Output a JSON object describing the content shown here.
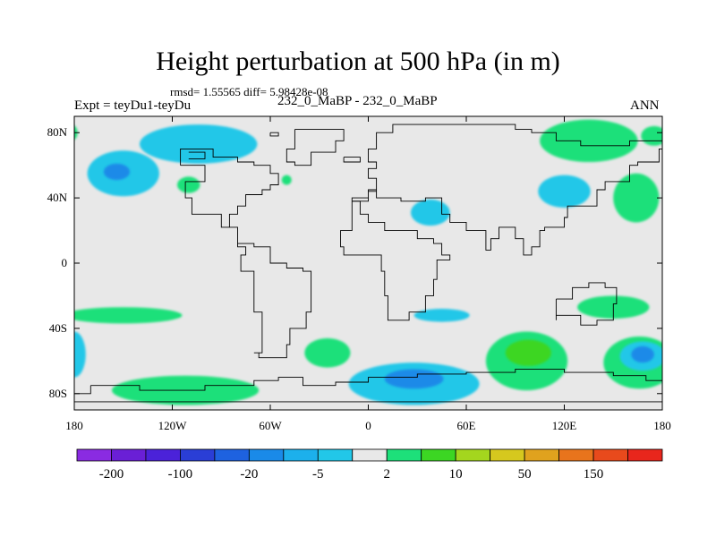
{
  "header": {
    "title": "Height perturbation at 500 hPa (in m)",
    "stats": "rmsd= 1.55565 diff= 5.98428e-08",
    "expt": "Expt = teyDu1-teyDu",
    "center": "232_0_MaBP - 232_0_MaBP",
    "season": "ANN"
  },
  "chart_data": {
    "type": "heatmap",
    "title": "Height perturbation at 500 hPa (in m)",
    "xlim": [
      -180,
      180
    ],
    "ylim": [
      -90,
      90
    ],
    "x_ticks": [
      {
        "value": -180,
        "label": "180"
      },
      {
        "value": -120,
        "label": "120W"
      },
      {
        "value": -60,
        "label": "60W"
      },
      {
        "value": 0,
        "label": "0"
      },
      {
        "value": 60,
        "label": "60E"
      },
      {
        "value": 120,
        "label": "120E"
      },
      {
        "value": 180,
        "label": "180"
      }
    ],
    "y_ticks": [
      {
        "value": 80,
        "label": "80N"
      },
      {
        "value": 40,
        "label": "40N"
      },
      {
        "value": 0,
        "label": "0"
      },
      {
        "value": -40,
        "label": "40S"
      },
      {
        "value": -80,
        "label": "80S"
      }
    ],
    "background_color": "#e8e8e8",
    "colorbar": {
      "colors": [
        "#8a2be2",
        "#6a1fd6",
        "#4b22d9",
        "#2a3ed6",
        "#1e62e0",
        "#1a8ae8",
        "#1cb0ec",
        "#22c7e8",
        "#e8e8e8",
        "#1de07a",
        "#3cd623",
        "#a4d61e",
        "#d6c81e",
        "#e0a21e",
        "#e8741c",
        "#e84a1c",
        "#e8261c"
      ],
      "labels": [
        {
          "after_index": 0,
          "text": "-200"
        },
        {
          "after_index": 2,
          "text": "-100"
        },
        {
          "after_index": 4,
          "text": "-20"
        },
        {
          "after_index": 6,
          "text": "-5"
        },
        {
          "after_index": 8,
          "text": "2"
        },
        {
          "after_index": 10,
          "text": "10"
        },
        {
          "after_index": 12,
          "text": "50"
        },
        {
          "after_index": 14,
          "text": "150"
        }
      ]
    },
    "anomalies": [
      {
        "lon": -150,
        "lat": 55,
        "rx": 22,
        "ry": 14,
        "value": -5
      },
      {
        "lon": -154,
        "lat": 56,
        "rx": 8,
        "ry": 5,
        "value": -20
      },
      {
        "lon": -104,
        "lat": 73,
        "rx": 36,
        "ry": 12,
        "value": -5
      },
      {
        "lon": -110,
        "lat": 48,
        "rx": 7,
        "ry": 5,
        "value": 5
      },
      {
        "lon": -182,
        "lat": 80,
        "rx": 4,
        "ry": 5,
        "value": 5
      },
      {
        "lon": -50,
        "lat": 51,
        "rx": 3,
        "ry": 3,
        "value": 5
      },
      {
        "lon": 38,
        "lat": 31,
        "rx": 12,
        "ry": 8,
        "value": -5
      },
      {
        "lon": 120,
        "lat": 44,
        "rx": 16,
        "ry": 10,
        "value": -5
      },
      {
        "lon": 135,
        "lat": 75,
        "rx": 30,
        "ry": 13,
        "value": 5
      },
      {
        "lon": 164,
        "lat": 40,
        "rx": 14,
        "ry": 15,
        "value": 5
      },
      {
        "lon": 175,
        "lat": 78,
        "rx": 8,
        "ry": 6,
        "value": 5
      },
      {
        "lon": -150,
        "lat": -32,
        "rx": 36,
        "ry": 5,
        "value": 5
      },
      {
        "lon": -180,
        "lat": -56,
        "rx": 7,
        "ry": 14,
        "value": -5
      },
      {
        "lon": -112,
        "lat": -78,
        "rx": 45,
        "ry": 9,
        "value": 5
      },
      {
        "lon": -25,
        "lat": -55,
        "rx": 14,
        "ry": 9,
        "value": 5
      },
      {
        "lon": 28,
        "lat": -74,
        "rx": 40,
        "ry": 13,
        "value": -5
      },
      {
        "lon": 28,
        "lat": -71,
        "rx": 18,
        "ry": 6,
        "value": -20
      },
      {
        "lon": 45,
        "lat": -32,
        "rx": 17,
        "ry": 4,
        "value": -5
      },
      {
        "lon": 97,
        "lat": -60,
        "rx": 25,
        "ry": 18,
        "value": 5
      },
      {
        "lon": 98,
        "lat": -55,
        "rx": 14,
        "ry": 8,
        "value": 10
      },
      {
        "lon": 150,
        "lat": -27,
        "rx": 22,
        "ry": 7,
        "value": 5
      },
      {
        "lon": 166,
        "lat": -61,
        "rx": 22,
        "ry": 16,
        "value": 5
      },
      {
        "lon": 168,
        "lat": -57,
        "rx": 14,
        "ry": 9,
        "value": -5
      },
      {
        "lon": 168,
        "lat": -56,
        "rx": 7,
        "ry": 5,
        "value": -20
      }
    ],
    "boundaries": [
      [
        [
          -60,
          80
        ],
        [
          -55,
          80
        ],
        [
          -55,
          78
        ],
        [
          -60,
          78
        ],
        [
          -60,
          80
        ]
      ],
      [
        [
          -110,
          68
        ],
        [
          -100,
          68
        ],
        [
          -100,
          64
        ],
        [
          -110,
          64
        ]
      ],
      [
        [
          -115,
          60
        ],
        [
          -100,
          60
        ],
        [
          -100,
          50
        ],
        [
          -112,
          50
        ],
        [
          -112,
          40
        ],
        [
          -108,
          40
        ],
        [
          -108,
          30
        ],
        [
          -95,
          30
        ],
        [
          -90,
          22
        ],
        [
          -80,
          10
        ],
        [
          -75,
          5
        ],
        [
          -78,
          -5
        ],
        [
          -70,
          -15
        ],
        [
          -70,
          -30
        ],
        [
          -65,
          -40
        ],
        [
          -65,
          -55
        ],
        [
          -70,
          -55
        ],
        [
          -67,
          -58
        ],
        [
          -55,
          -58
        ],
        [
          -50,
          -50
        ],
        [
          -48,
          -40
        ],
        [
          -38,
          -30
        ],
        [
          -35,
          -20
        ],
        [
          -35,
          -5
        ],
        [
          -40,
          -3
        ],
        [
          -50,
          0
        ],
        [
          -60,
          10
        ],
        [
          -70,
          12
        ],
        [
          -80,
          22
        ],
        [
          -85,
          30
        ],
        [
          -80,
          35
        ],
        [
          -75,
          42
        ],
        [
          -65,
          45
        ],
        [
          -60,
          48
        ],
        [
          -55,
          55
        ],
        [
          -60,
          60
        ],
        [
          -70,
          62
        ],
        [
          -80,
          65
        ],
        [
          -95,
          70
        ],
        [
          -105,
          70
        ],
        [
          -115,
          65
        ],
        [
          -115,
          60
        ]
      ],
      [
        [
          -45,
          82
        ],
        [
          -20,
          82
        ],
        [
          -15,
          75
        ],
        [
          -20,
          68
        ],
        [
          -35,
          60
        ],
        [
          -45,
          62
        ],
        [
          -50,
          70
        ],
        [
          -45,
          82
        ]
      ],
      [
        [
          -15,
          65
        ],
        [
          -5,
          65
        ],
        [
          -5,
          62
        ],
        [
          -15,
          62
        ],
        [
          -15,
          65
        ]
      ],
      [
        [
          -10,
          38
        ],
        [
          -5,
          30
        ],
        [
          0,
          25
        ],
        [
          10,
          20
        ],
        [
          20,
          20
        ],
        [
          30,
          15
        ],
        [
          40,
          12
        ],
        [
          45,
          5
        ],
        [
          50,
          2
        ],
        [
          42,
          -10
        ],
        [
          40,
          -20
        ],
        [
          35,
          -30
        ],
        [
          25,
          -35
        ],
        [
          20,
          -35
        ],
        [
          12,
          -20
        ],
        [
          10,
          -5
        ],
        [
          8,
          5
        ],
        [
          -5,
          5
        ],
        [
          -15,
          10
        ],
        [
          -17,
          20
        ],
        [
          -10,
          30
        ],
        [
          -10,
          38
        ]
      ],
      [
        [
          -10,
          38
        ],
        [
          0,
          44
        ],
        [
          5,
          52
        ],
        [
          0,
          58
        ],
        [
          5,
          62
        ],
        [
          0,
          70
        ],
        [
          5,
          80
        ],
        [
          15,
          85
        ],
        [
          60,
          85
        ],
        [
          90,
          82
        ],
        [
          100,
          80
        ],
        [
          115,
          75
        ],
        [
          130,
          72
        ],
        [
          145,
          72
        ],
        [
          160,
          75
        ],
        [
          180,
          70
        ],
        [
          178,
          62
        ],
        [
          165,
          60
        ],
        [
          160,
          50
        ],
        [
          145,
          45
        ],
        [
          140,
          35
        ],
        [
          130,
          35
        ],
        [
          122,
          28
        ],
        [
          120,
          22
        ],
        [
          108,
          20
        ],
        [
          105,
          10
        ],
        [
          100,
          5
        ],
        [
          95,
          15
        ],
        [
          90,
          22
        ],
        [
          80,
          15
        ],
        [
          75,
          8
        ],
        [
          72,
          20
        ],
        [
          60,
          25
        ],
        [
          55,
          25
        ],
        [
          50,
          30
        ],
        [
          45,
          40
        ],
        [
          35,
          38
        ],
        [
          25,
          38
        ],
        [
          20,
          40
        ],
        [
          10,
          40
        ],
        [
          5,
          45
        ],
        [
          0,
          40
        ],
        [
          -10,
          38
        ]
      ],
      [
        [
          115,
          -22
        ],
        [
          125,
          -15
        ],
        [
          135,
          -12
        ],
        [
          145,
          -15
        ],
        [
          152,
          -25
        ],
        [
          150,
          -35
        ],
        [
          140,
          -38
        ],
        [
          130,
          -32
        ],
        [
          115,
          -35
        ],
        [
          115,
          -22
        ]
      ],
      [
        [
          -170,
          -75
        ],
        [
          -140,
          -78
        ],
        [
          -100,
          -75
        ],
        [
          -70,
          -72
        ],
        [
          -55,
          -70
        ],
        [
          -40,
          -75
        ],
        [
          -20,
          -73
        ],
        [
          0,
          -70
        ],
        [
          30,
          -68
        ],
        [
          60,
          -67
        ],
        [
          90,
          -65
        ],
        [
          120,
          -67
        ],
        [
          150,
          -69
        ],
        [
          170,
          -72
        ],
        [
          180,
          -78
        ],
        [
          180,
          -85
        ],
        [
          -180,
          -85
        ],
        [
          -180,
          -80
        ],
        [
          -170,
          -75
        ]
      ]
    ]
  }
}
